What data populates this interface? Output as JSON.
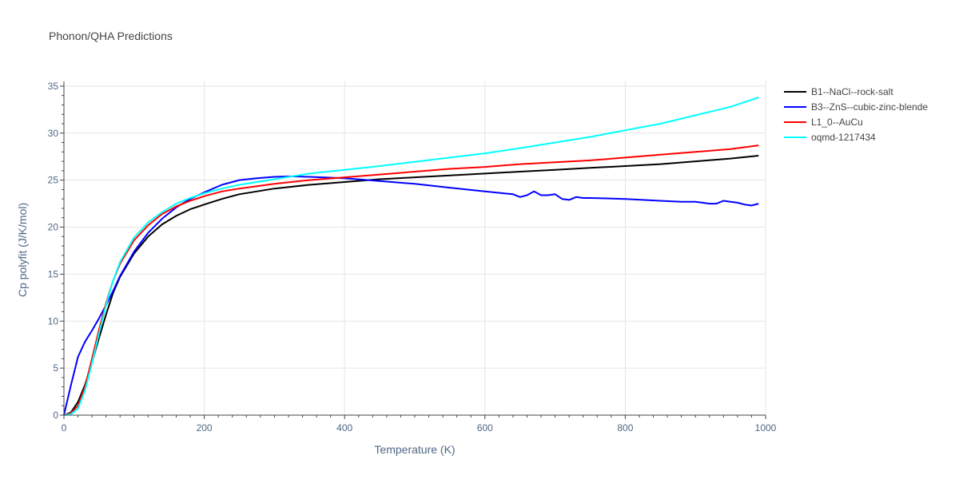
{
  "chart_data": {
    "type": "line",
    "title": "Phonon/QHA Predictions",
    "xlabel": "Temperature (K)",
    "ylabel": "Cp polyfit (J/K/mol)",
    "xlim": [
      0,
      1000
    ],
    "ylim": [
      0,
      35.5
    ],
    "xticks": [
      0,
      200,
      400,
      600,
      800,
      1000
    ],
    "yticks": [
      0,
      5,
      10,
      15,
      20,
      25,
      30,
      35
    ],
    "grid": true,
    "legend_position": "top-right",
    "series": [
      {
        "name": "B1--NaCl--rock-salt",
        "color": "#000000",
        "x": [
          0,
          10,
          20,
          30,
          40,
          50,
          60,
          70,
          80,
          100,
          120,
          140,
          160,
          180,
          200,
          225,
          250,
          300,
          350,
          400,
          450,
          500,
          550,
          600,
          650,
          700,
          750,
          800,
          850,
          900,
          950,
          990
        ],
        "y": [
          0,
          0.3,
          1.4,
          3.2,
          5.6,
          8.2,
          10.7,
          13.0,
          14.7,
          17.2,
          19.0,
          20.3,
          21.2,
          21.9,
          22.4,
          23.0,
          23.5,
          24.1,
          24.5,
          24.8,
          25.1,
          25.3,
          25.5,
          25.7,
          25.9,
          26.1,
          26.3,
          26.5,
          26.7,
          27.0,
          27.3,
          27.6
        ]
      },
      {
        "name": "B3--ZnS--cubic-zinc-blende",
        "color": "#0000ff",
        "x": [
          0,
          10,
          20,
          30,
          40,
          50,
          60,
          70,
          80,
          100,
          120,
          140,
          160,
          180,
          200,
          225,
          250,
          275,
          300,
          325,
          350,
          400,
          450,
          500,
          550,
          600,
          640,
          650,
          660,
          670,
          680,
          690,
          700,
          710,
          720,
          730,
          740,
          750,
          800,
          850,
          880,
          900,
          910,
          920,
          930,
          940,
          950,
          960,
          970,
          980,
          990
        ],
        "y": [
          0,
          3.2,
          6.2,
          7.8,
          9.0,
          10.3,
          11.7,
          13.2,
          14.8,
          17.4,
          19.4,
          20.9,
          22.1,
          23.0,
          23.7,
          24.5,
          25.0,
          25.2,
          25.35,
          25.4,
          25.35,
          25.2,
          24.9,
          24.6,
          24.2,
          23.8,
          23.5,
          23.2,
          23.4,
          23.8,
          23.4,
          23.4,
          23.5,
          23.0,
          22.9,
          23.2,
          23.1,
          23.1,
          23.0,
          22.8,
          22.7,
          22.7,
          22.6,
          22.5,
          22.5,
          22.8,
          22.7,
          22.6,
          22.4,
          22.3,
          22.5
        ]
      },
      {
        "name": "L1_0--AuCu",
        "color": "#ff0000",
        "x": [
          0,
          10,
          20,
          30,
          40,
          50,
          60,
          70,
          80,
          100,
          120,
          140,
          160,
          180,
          200,
          225,
          250,
          300,
          350,
          400,
          450,
          500,
          550,
          600,
          650,
          700,
          750,
          800,
          850,
          900,
          950,
          990
        ],
        "y": [
          0,
          0.2,
          1.0,
          3.0,
          6.0,
          9.1,
          11.9,
          14.3,
          16.1,
          18.6,
          20.2,
          21.4,
          22.2,
          22.8,
          23.3,
          23.8,
          24.1,
          24.6,
          25.0,
          25.3,
          25.6,
          25.9,
          26.2,
          26.4,
          26.7,
          26.9,
          27.1,
          27.4,
          27.7,
          28.0,
          28.3,
          28.7
        ]
      },
      {
        "name": "oqmd-1217434",
        "color": "#00ffff",
        "x": [
          0,
          10,
          20,
          30,
          40,
          50,
          60,
          70,
          80,
          100,
          120,
          140,
          160,
          180,
          200,
          225,
          250,
          300,
          350,
          400,
          450,
          500,
          550,
          600,
          650,
          700,
          750,
          800,
          850,
          900,
          950,
          990
        ],
        "y": [
          0,
          0.1,
          0.7,
          2.6,
          5.5,
          8.7,
          11.7,
          14.3,
          16.3,
          18.9,
          20.5,
          21.6,
          22.5,
          23.1,
          23.6,
          24.1,
          24.5,
          25.1,
          25.7,
          26.1,
          26.5,
          26.95,
          27.4,
          27.85,
          28.4,
          29.0,
          29.6,
          30.3,
          31.0,
          31.9,
          32.8,
          33.8
        ]
      }
    ]
  }
}
